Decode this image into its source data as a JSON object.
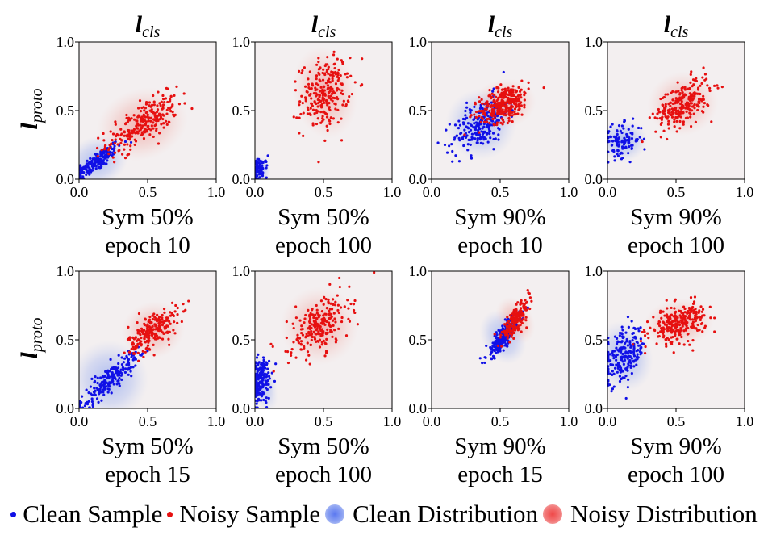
{
  "chart_data": {
    "type": "scatter",
    "x_axis_label": "l",
    "x_axis_label_sub": "cls",
    "y_axis_label": "l",
    "y_axis_label_sub": "proto",
    "xlim": [
      0,
      1
    ],
    "ylim": [
      0,
      1
    ],
    "ticks": [
      "0.0",
      "0.5",
      "1.0"
    ],
    "colors": {
      "clean": "#1010e6",
      "noisy": "#e61010",
      "panel_bg": "#f3eff0",
      "clean_dist": "#6f8ff0",
      "noisy_dist": "#f05a5a"
    },
    "panels": [
      {
        "row": 0,
        "col": 0,
        "caption": [
          "Sym 50%",
          "epoch 10"
        ],
        "clean": {
          "n": 180,
          "center": [
            0.13,
            0.13
          ],
          "sd": [
            0.09,
            0.07
          ],
          "rho": 0.85
        },
        "noisy": {
          "n": 260,
          "center": [
            0.46,
            0.4
          ],
          "sd": [
            0.13,
            0.1
          ],
          "rho": 0.7
        }
      },
      {
        "row": 0,
        "col": 1,
        "caption": [
          "Sym 50%",
          "epoch 100"
        ],
        "clean": {
          "n": 70,
          "center": [
            0.03,
            0.07
          ],
          "sd": [
            0.03,
            0.04
          ],
          "rho": 0.3
        },
        "noisy": {
          "n": 240,
          "center": [
            0.51,
            0.63
          ],
          "sd": [
            0.09,
            0.13
          ],
          "rho": 0.2
        }
      },
      {
        "row": 0,
        "col": 2,
        "caption": [
          "Sym 90%",
          "epoch 10"
        ],
        "clean": {
          "n": 230,
          "center": [
            0.36,
            0.4
          ],
          "sd": [
            0.1,
            0.1
          ],
          "rho": 0.5
        },
        "noisy": {
          "n": 300,
          "center": [
            0.53,
            0.55
          ],
          "sd": [
            0.09,
            0.07
          ],
          "rho": 0.4
        }
      },
      {
        "row": 0,
        "col": 3,
        "caption": [
          "Sym 90%",
          "epoch 100"
        ],
        "clean": {
          "n": 110,
          "center": [
            0.11,
            0.28
          ],
          "sd": [
            0.07,
            0.06
          ],
          "rho": 0.1
        },
        "noisy": {
          "n": 260,
          "center": [
            0.55,
            0.55
          ],
          "sd": [
            0.1,
            0.09
          ],
          "rho": 0.5
        }
      },
      {
        "row": 1,
        "col": 0,
        "caption": [
          "Sym 50%",
          "epoch 15"
        ],
        "clean": {
          "n": 200,
          "center": [
            0.22,
            0.21
          ],
          "sd": [
            0.11,
            0.11
          ],
          "rho": 0.9
        },
        "noisy": {
          "n": 220,
          "center": [
            0.54,
            0.57
          ],
          "sd": [
            0.09,
            0.08
          ],
          "rho": 0.6
        }
      },
      {
        "row": 1,
        "col": 1,
        "caption": [
          "Sym 50%",
          "epoch 100"
        ],
        "clean": {
          "n": 180,
          "center": [
            0.04,
            0.2
          ],
          "sd": [
            0.04,
            0.09
          ],
          "rho": 0.3
        },
        "noisy": {
          "n": 230,
          "center": [
            0.47,
            0.6
          ],
          "sd": [
            0.11,
            0.11
          ],
          "rho": 0.5
        }
      },
      {
        "row": 1,
        "col": 2,
        "caption": [
          "Sym 90%",
          "epoch 15"
        ],
        "clean": {
          "n": 250,
          "center": [
            0.52,
            0.52
          ],
          "sd": [
            0.06,
            0.08
          ],
          "rho": 0.85
        },
        "noisy": {
          "n": 200,
          "center": [
            0.61,
            0.64
          ],
          "sd": [
            0.05,
            0.07
          ],
          "rho": 0.8
        }
      },
      {
        "row": 1,
        "col": 3,
        "caption": [
          "Sym 90%",
          "epoch 100"
        ],
        "clean": {
          "n": 200,
          "center": [
            0.12,
            0.38
          ],
          "sd": [
            0.08,
            0.1
          ],
          "rho": 0.4
        },
        "noisy": {
          "n": 260,
          "center": [
            0.52,
            0.62
          ],
          "sd": [
            0.1,
            0.07
          ],
          "rho": 0.4
        }
      }
    ],
    "legend": {
      "clean_sample": "Clean Sample",
      "noisy_sample": "Noisy Sample",
      "clean_distribution": "Clean Distribution",
      "noisy_distribution": "Noisy Distribution"
    }
  }
}
